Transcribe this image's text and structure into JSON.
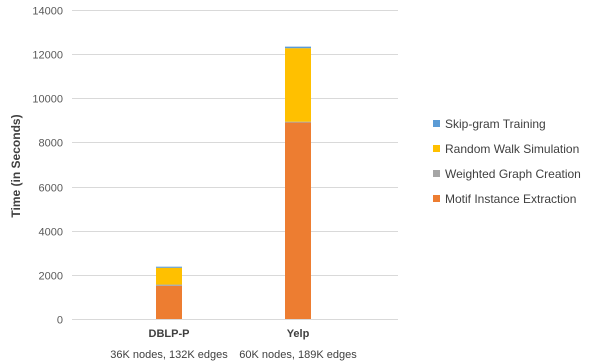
{
  "chart_data": {
    "type": "bar",
    "stacked": true,
    "categories": [
      "DBLP-P",
      "Yelp"
    ],
    "category_subtitles": [
      "36K nodes, 132K edges",
      "60K nodes, 189K edges"
    ],
    "ylabel": "Time (in Seconds)",
    "ylim": [
      0,
      14000
    ],
    "yticks": [
      0,
      2000,
      4000,
      6000,
      8000,
      10000,
      12000,
      14000
    ],
    "grid": true,
    "legend_position": "right",
    "series": [
      {
        "name": "Motif Instance Extraction",
        "color": "#ed7d31",
        "values": [
          1500,
          8900
        ]
      },
      {
        "name": "Weighted Graph Creation",
        "color": "#a5a5a5",
        "values": [
          60,
          40
        ]
      },
      {
        "name": "Random Walk Simulation",
        "color": "#ffc000",
        "values": [
          760,
          3330
        ]
      },
      {
        "name": "Skip-gram Training",
        "color": "#5b9bd5",
        "values": [
          50,
          70
        ]
      }
    ],
    "legend_order": [
      "Skip-gram Training",
      "Random Walk Simulation",
      "Weighted Graph Creation",
      "Motif Instance Extraction"
    ]
  }
}
